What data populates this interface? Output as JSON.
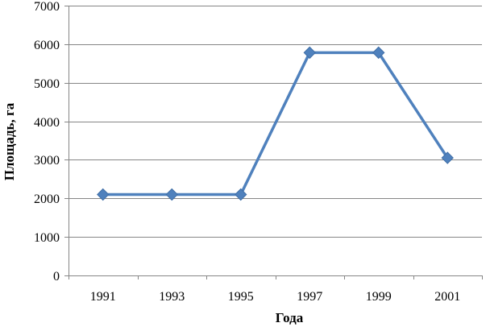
{
  "chart_data": {
    "type": "line",
    "title": "",
    "xlabel": "Года",
    "ylabel": "Площадь, га",
    "categories": [
      "1991",
      "1993",
      "1995",
      "1997",
      "1999",
      "2001"
    ],
    "series": [
      {
        "values": [
          2100,
          2100,
          2100,
          5780,
          5780,
          3050
        ],
        "color": "#4F81BD",
        "marker": "diamond"
      }
    ],
    "ylim": [
      0,
      7000
    ],
    "yticks": [
      0,
      1000,
      2000,
      3000,
      4000,
      5000,
      6000,
      7000
    ],
    "grid": "horizontal",
    "legend": "none"
  }
}
